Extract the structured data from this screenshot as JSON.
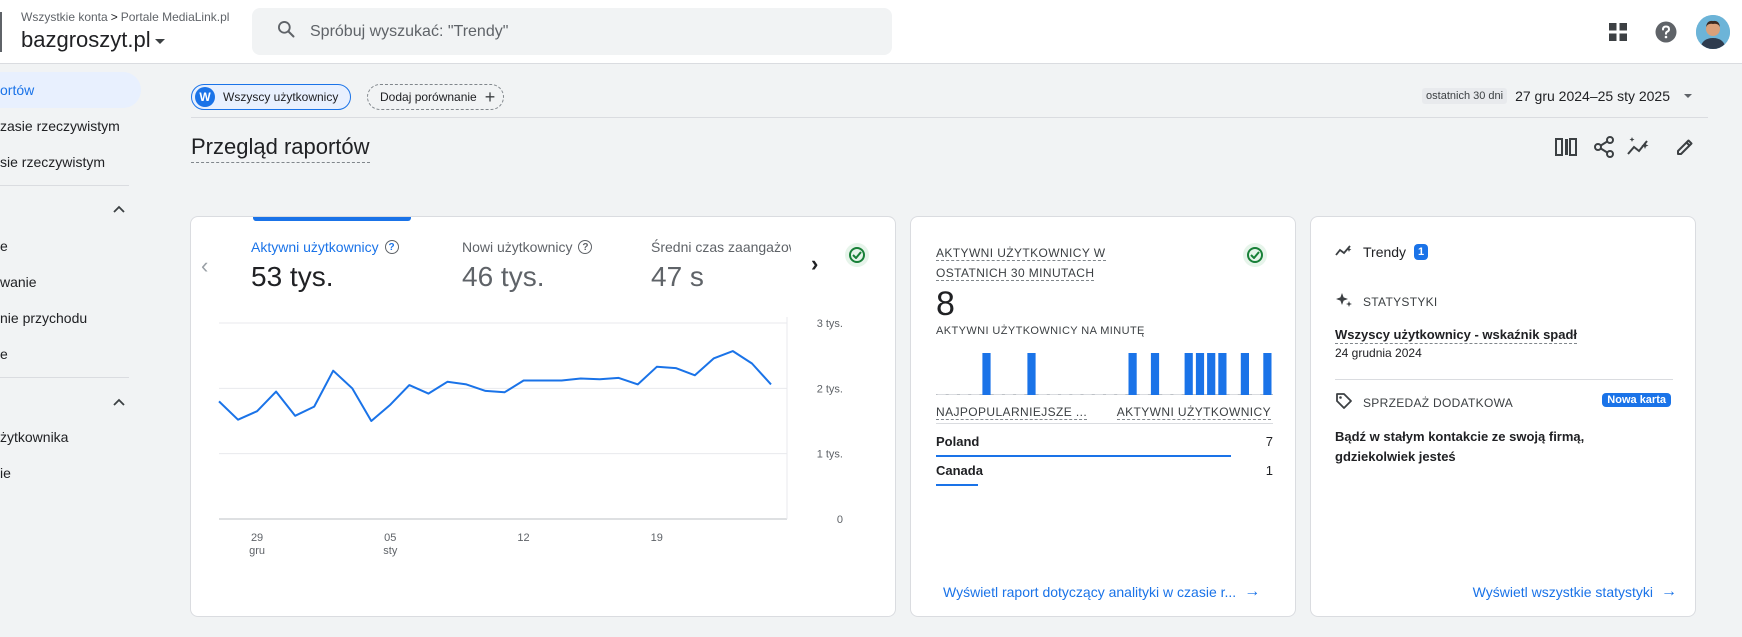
{
  "header": {
    "breadcrumb_1": "Wszystkie konta",
    "breadcrumb_sep": ">",
    "breadcrumb_2": "Portale MediaLink.pl",
    "property": "bazgroszyt.pl",
    "search_placeholder": "Spróbuj wyszukać: \"Trendy\""
  },
  "sidebar": {
    "items": [
      {
        "label": "ortów",
        "active": true
      },
      {
        "label": "zasie rzeczywistym"
      },
      {
        "label": "sie rzeczywistym"
      },
      {
        "label": "e"
      },
      {
        "label": "wanie"
      },
      {
        "label": "nie przychodu"
      },
      {
        "label": "e"
      },
      {
        "label": "żytkownika"
      },
      {
        "label": "ie"
      }
    ]
  },
  "filters": {
    "segment_initial": "W",
    "segment_label": "Wszyscy użytkownicy",
    "add_comparison": "Dodaj porównanie",
    "date_range_label": "ostatnich 30 dni",
    "date_range_value": "27 gru 2024–25 sty 2025"
  },
  "page": {
    "title": "Przegląd raportów"
  },
  "card1": {
    "metrics": [
      {
        "label": "Aktywni użytkownicy",
        "value": "53 tys.",
        "active": true
      },
      {
        "label": "Nowi użytkownicy",
        "value": "46 tys."
      },
      {
        "label": "Średni czas zaangażowania",
        "value": "47 s"
      }
    ],
    "chart_data": {
      "type": "line",
      "title": "",
      "xlabel": "",
      "ylabel": "",
      "y_ticks": [
        "3 tys.",
        "2 tys.",
        "1 tys.",
        "0"
      ],
      "ylim": [
        0,
        3000
      ],
      "x_ticks": [
        {
          "day": "29",
          "month": "gru"
        },
        {
          "day": "05",
          "month": "sty"
        },
        {
          "day": "12",
          "month": ""
        },
        {
          "day": "19",
          "month": ""
        }
      ],
      "grid": true,
      "series": [
        {
          "color": "#1a73e8",
          "values": [
            1800,
            1520,
            1650,
            1950,
            1580,
            1720,
            2270,
            2000,
            1500,
            1750,
            2050,
            1920,
            2100,
            2060,
            1960,
            1940,
            2120,
            2120,
            2120,
            2150,
            2140,
            2160,
            2060,
            2330,
            2310,
            2200,
            2460,
            2570,
            2380,
            2060
          ]
        }
      ]
    }
  },
  "card2": {
    "title": "AKTYWNI UŻYTKOWNICY W OSTATNICH 30 MINUTACH",
    "value": "8",
    "subtitle": "AKTYWNI UŻYTKOWNICY NA MINUTĘ",
    "per_minute_chart": {
      "type": "bar",
      "values": [
        0,
        0,
        0,
        0,
        1,
        0,
        0,
        0,
        1,
        0,
        0,
        0,
        0,
        0,
        0,
        0,
        0,
        1,
        0,
        1,
        0,
        0,
        1,
        1,
        1,
        1,
        0,
        1,
        0,
        1
      ]
    },
    "col_country": "NAJPOPULARNIEJSZE ...",
    "col_users": "AKTYWNI UŻYTKOWNICY",
    "rows": [
      {
        "country": "Poland",
        "users": "7",
        "share": 0.875
      },
      {
        "country": "Canada",
        "users": "1",
        "share": 0.125
      }
    ],
    "link": "Wyświetl raport dotyczący analityki w czasie r..."
  },
  "card3": {
    "title": "Trendy",
    "badge": "1",
    "insights_label": "STATYSTYKI",
    "insight_title": "Wszyscy użytkownicy - wskaźnik spadł",
    "insight_date": "24 grudnia 2024",
    "upsell_label": "SPRZEDAŻ DODATKOWA",
    "new_badge": "Nowa karta",
    "upsell_text": "Bądź w stałym kontakcie ze swoją firmą, gdziekolwiek jesteś",
    "link": "Wyświetl wszystkie statystyki"
  },
  "colors": {
    "accent": "#1a73e8",
    "success": "#188038"
  }
}
